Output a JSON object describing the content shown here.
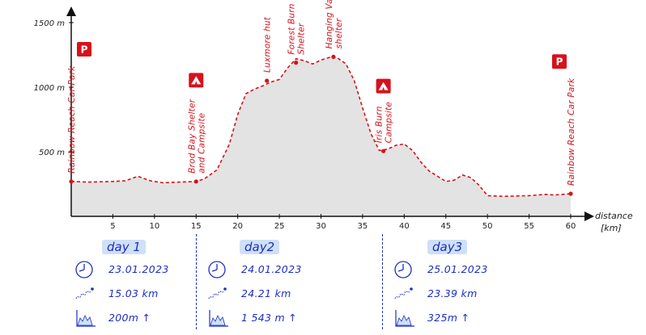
{
  "chart_data": {
    "type": "area",
    "xlabel": "distance",
    "xunit": "[km]",
    "xlim": [
      0,
      60
    ],
    "ylim": [
      0,
      1500
    ],
    "x_ticks": [
      "5",
      "10",
      "15",
      "20",
      "25",
      "30",
      "35",
      "40",
      "45",
      "50",
      "55",
      "60"
    ],
    "y_ticks": [
      {
        "value": 500,
        "label": "500 m"
      },
      {
        "value": 1000,
        "label": "1000 m"
      },
      {
        "value": 1500,
        "label": "1500 m"
      }
    ],
    "x": [
      0,
      2,
      5,
      6.5,
      8,
      9.5,
      11,
      13,
      15,
      16,
      17.5,
      19,
      20,
      21,
      22,
      23,
      24,
      25,
      26,
      27,
      28,
      29,
      30,
      31,
      31.5,
      32,
      33,
      34,
      35,
      36,
      37,
      38,
      39,
      40,
      41,
      42,
      43,
      45,
      46,
      47,
      48,
      49,
      50,
      52,
      55,
      57,
      58,
      60
    ],
    "y": [
      270,
      265,
      270,
      275,
      310,
      275,
      260,
      265,
      270,
      290,
      360,
      560,
      790,
      950,
      985,
      1010,
      1040,
      1060,
      1150,
      1220,
      1205,
      1180,
      1210,
      1230,
      1235,
      1225,
      1180,
      1050,
      840,
      640,
      510,
      520,
      550,
      560,
      510,
      420,
      350,
      270,
      280,
      320,
      300,
      240,
      160,
      155,
      160,
      170,
      165,
      175
    ],
    "annotations": [
      {
        "x": 0,
        "y": 270,
        "label": "Rainbow Reach Car Park",
        "parking": true
      },
      {
        "x": 15,
        "y": 270,
        "label": "Brod Bay Shelter and Campsite",
        "campsite": true
      },
      {
        "x": 23.5,
        "y": 1050,
        "label": "Luxmore hut"
      },
      {
        "x": 27,
        "y": 1190,
        "label": "Forest Burn Shelter"
      },
      {
        "x": 31.5,
        "y": 1235,
        "label": "Hanging Valley shelter"
      },
      {
        "x": 37.5,
        "y": 505,
        "label": "Iris Burn Campsite",
        "campsite": true
      },
      {
        "x": 60,
        "y": 175,
        "label": "Rainbow Reach Car Park",
        "parking": true
      }
    ]
  },
  "days": [
    {
      "title": "day 1",
      "date": "23.01.2023",
      "distance": "15.03 km",
      "elevation": "200m ↑"
    },
    {
      "title": "day2",
      "date": "24.01.2023",
      "distance": "24.21 km",
      "elevation": "1 543 m ↑"
    },
    {
      "title": "day3",
      "date": "25.01.2023",
      "distance": "23.39 km",
      "elevation": "325m ↑"
    }
  ],
  "icons": {
    "parking": "P",
    "clock": "clock-icon",
    "route": "route-icon",
    "elevation": "elevation-icon"
  },
  "colors": {
    "route": "#d6121c",
    "fill": "#e3e3e3",
    "accent": "#1c2fc4",
    "highlight": "#cfe0f7"
  }
}
